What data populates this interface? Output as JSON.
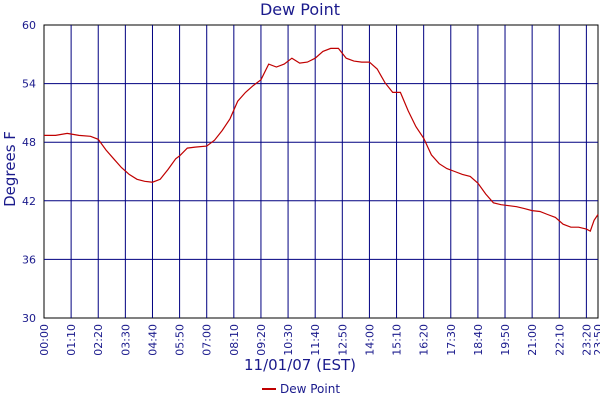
{
  "chart_data": {
    "type": "line",
    "title": "Dew Point",
    "xlabel": "11/01/07 (EST)",
    "ylabel": "Degrees F",
    "ylim": [
      30,
      60
    ],
    "yticks": [
      30,
      36,
      42,
      48,
      54,
      60
    ],
    "xticks": [
      "00:00",
      "01:10",
      "02:20",
      "03:30",
      "04:40",
      "05:50",
      "07:00",
      "08:10",
      "09:20",
      "10:30",
      "11:40",
      "12:50",
      "14:00",
      "15:10",
      "16:20",
      "17:30",
      "18:40",
      "19:50",
      "21:00",
      "22:10",
      "23:20",
      "23:50"
    ],
    "xlim_minutes": [
      0,
      1430
    ],
    "grid": true,
    "legend": "bottom-center",
    "series": [
      {
        "name": "Dew Point",
        "color": "#c00000",
        "x": [
          "00:00",
          "00:30",
          "01:00",
          "01:30",
          "02:00",
          "02:20",
          "02:40",
          "03:00",
          "03:20",
          "03:40",
          "04:00",
          "04:20",
          "04:40",
          "05:00",
          "05:20",
          "05:40",
          "05:50",
          "06:10",
          "06:30",
          "07:00",
          "07:20",
          "07:40",
          "08:00",
          "08:20",
          "08:40",
          "09:00",
          "09:20",
          "09:40",
          "10:00",
          "10:20",
          "10:40",
          "11:00",
          "11:20",
          "11:40",
          "12:00",
          "12:20",
          "12:40",
          "13:00",
          "13:20",
          "13:40",
          "14:00",
          "14:20",
          "14:40",
          "15:00",
          "15:20",
          "15:40",
          "16:00",
          "16:20",
          "16:40",
          "17:00",
          "17:20",
          "17:40",
          "18:00",
          "18:20",
          "18:40",
          "19:00",
          "19:20",
          "19:40",
          "20:00",
          "20:20",
          "20:40",
          "21:00",
          "21:20",
          "21:40",
          "22:00",
          "22:20",
          "22:40",
          "23:00",
          "23:20",
          "23:30",
          "23:40",
          "23:50"
        ],
        "values": [
          48.7,
          48.7,
          48.9,
          48.7,
          48.6,
          48.3,
          47.2,
          46.3,
          45.4,
          44.7,
          44.2,
          44.0,
          43.9,
          44.2,
          45.2,
          46.3,
          46.6,
          47.4,
          47.5,
          47.6,
          48.2,
          49.2,
          50.4,
          52.2,
          53.1,
          53.8,
          54.4,
          56.0,
          55.7,
          56.0,
          56.6,
          56.1,
          56.2,
          56.6,
          57.3,
          57.6,
          57.6,
          56.6,
          56.3,
          56.2,
          56.2,
          55.5,
          54.1,
          53.1,
          53.1,
          51.2,
          49.6,
          48.4,
          46.7,
          45.8,
          45.3,
          45.0,
          44.7,
          44.5,
          43.8,
          42.7,
          41.8,
          41.6,
          41.5,
          41.4,
          41.2,
          41.0,
          40.9,
          40.6,
          40.3,
          39.6,
          39.3,
          39.3,
          39.1,
          38.9,
          40.0,
          40.6
        ]
      }
    ]
  }
}
